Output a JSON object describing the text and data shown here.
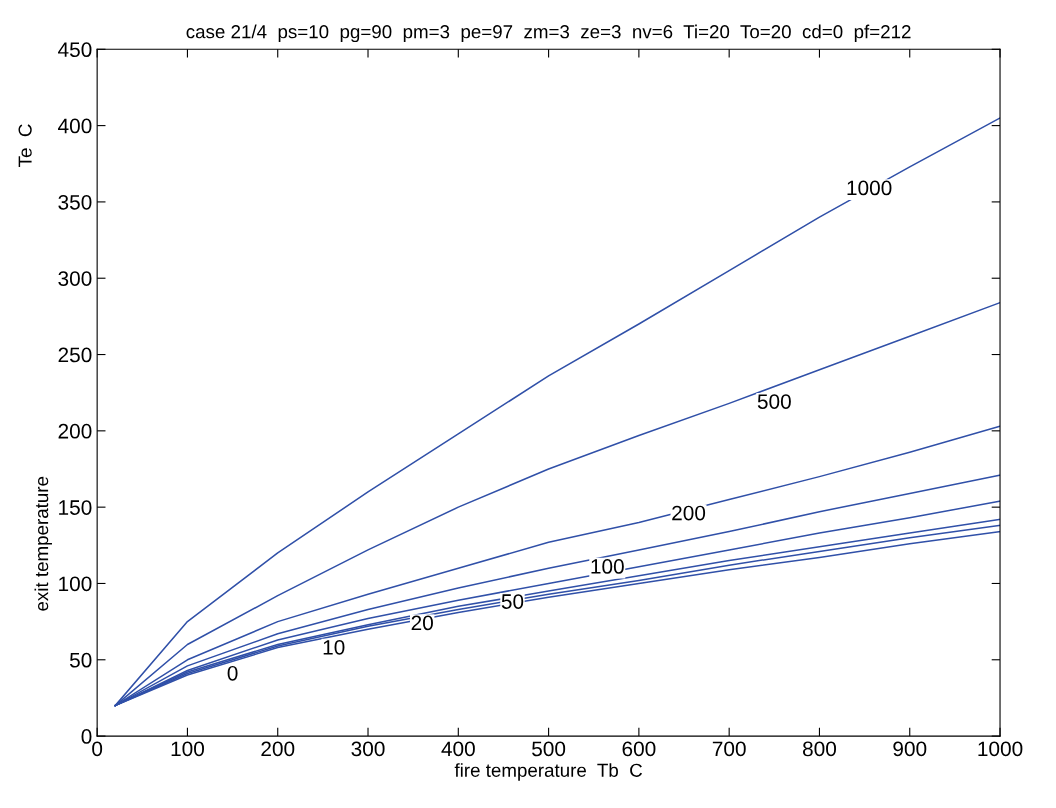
{
  "chart_data": {
    "type": "line",
    "title": "case 21/4  ps=10  pg=90  pm=3  pe=97  zm=3  ze=3  nv=6  Ti=20  To=20  cd=0  pf=212",
    "xlabel": "fire temperature  Tb  C",
    "ylabel": "exit temperature",
    "x": [
      20,
      100,
      200,
      300,
      400,
      500,
      600,
      700,
      800,
      900,
      1000
    ],
    "series": [
      {
        "color": "#3050a8",
        "values": [
          20,
          75,
          120,
          160,
          198,
          236,
          270,
          305,
          340,
          373,
          405
        ]
      },
      {
        "color": "#3050a8",
        "values": [
          20,
          60,
          92,
          122,
          150,
          175,
          197,
          218,
          240,
          262,
          284
        ]
      },
      {
        "color": "#3050a8",
        "values": [
          20,
          50,
          75,
          93,
          110,
          127,
          140,
          155,
          170,
          186,
          203
        ]
      },
      {
        "color": "#3050a8",
        "values": [
          20,
          46,
          67,
          83,
          97,
          110,
          122,
          134,
          147,
          159,
          171
        ]
      },
      {
        "color": "#3050a8",
        "values": [
          20,
          43,
          63,
          77,
          89,
          100,
          111,
          122,
          133,
          143,
          154
        ]
      },
      {
        "color": "#3050a8",
        "values": [
          20,
          42,
          60,
          73,
          85,
          95,
          105,
          115,
          124,
          133,
          142
        ]
      },
      {
        "color": "#3050a8",
        "values": [
          20,
          41,
          59,
          72,
          83,
          93,
          102,
          112,
          121,
          130,
          138
        ]
      },
      {
        "color": "#3050a8",
        "values": [
          20,
          40,
          58,
          70,
          81,
          91,
          100,
          109,
          117,
          126,
          134
        ]
      }
    ],
    "annotations": [
      "Te  C",
      {
        "text": "1000",
        "x": 855,
        "y": 358
      },
      {
        "text": "500",
        "x": 750,
        "y": 218
      },
      {
        "text": "200",
        "x": 655,
        "y": 145
      },
      {
        "text": "100",
        "x": 565,
        "y": 110
      },
      {
        "text": "50",
        "x": 460,
        "y": 87
      },
      {
        "text": "20",
        "x": 360,
        "y": 73
      },
      {
        "text": "10",
        "x": 262,
        "y": 57
      },
      {
        "text": "0",
        "x": 150,
        "y": 40
      }
    ],
    "xlim": [
      0,
      1000
    ],
    "xticks": [
      0,
      100,
      200,
      300,
      400,
      500,
      600,
      700,
      800,
      900,
      1000
    ],
    "ylim": [
      0,
      450
    ],
    "yticks": [
      0,
      50,
      100,
      150,
      200,
      250,
      300,
      350,
      400,
      450
    ],
    "grid": false,
    "line_style": "solid",
    "marker": "none"
  }
}
